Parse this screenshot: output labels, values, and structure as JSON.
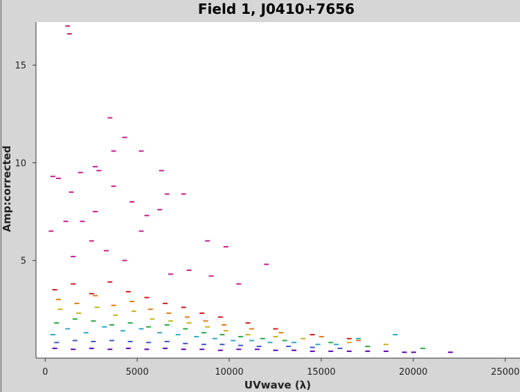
{
  "chart_data": {
    "type": "scatter",
    "title": "Field 1, J0410+7656",
    "xlabel": "UVwave (λ)",
    "ylabel": "Amp:corrected",
    "xlim": [
      -500,
      25800
    ],
    "ylim": [
      0,
      17.2
    ],
    "x_ticks": [
      0,
      5000,
      10000,
      15000,
      20000,
      25000
    ],
    "x_tick_labels": [
      "0",
      "5000",
      "10000",
      "15000",
      "20000",
      "25000"
    ],
    "y_ticks": [
      5,
      10,
      15
    ],
    "y_tick_labels": [
      "5",
      "10",
      "15"
    ],
    "grid": false,
    "background": "#ffffff",
    "series_colors": [
      "#5a00b5",
      "#3f53c9",
      "#2aa7c6",
      "#26a843",
      "#c7b21a",
      "#e07a12",
      "#d21818",
      "#c81c8c",
      "#8c1a8c",
      "#1a8c8c",
      "#6a6a6a"
    ],
    "series": [
      {
        "color": "#5a00b5",
        "points": [
          [
            500,
            0.5
          ],
          [
            1500,
            0.45
          ],
          [
            2500,
            0.5
          ],
          [
            3500,
            0.45
          ],
          [
            4500,
            0.5
          ],
          [
            5500,
            0.45
          ],
          [
            6500,
            0.5
          ],
          [
            7500,
            0.45
          ],
          [
            8500,
            0.45
          ],
          [
            9500,
            0.4
          ],
          [
            10500,
            0.45
          ],
          [
            11500,
            0.45
          ],
          [
            12500,
            0.4
          ],
          [
            13500,
            0.4
          ],
          [
            14500,
            0.35
          ],
          [
            15500,
            0.35
          ],
          [
            16500,
            0.35
          ],
          [
            17500,
            0.35
          ],
          [
            18500,
            0.35
          ],
          [
            19500,
            0.3
          ],
          [
            20000,
            0.3
          ],
          [
            22000,
            0.3
          ]
        ]
      },
      {
        "color": "#2aa7c6",
        "points": [
          [
            400,
            1.2
          ],
          [
            1200,
            1.5
          ],
          [
            2200,
            1.3
          ],
          [
            3200,
            1.6
          ],
          [
            4200,
            1.4
          ],
          [
            5200,
            1.5
          ],
          [
            6200,
            1.3
          ],
          [
            7200,
            1.2
          ],
          [
            8200,
            1.1
          ],
          [
            9200,
            1.0
          ],
          [
            10200,
            0.9
          ],
          [
            11200,
            0.9
          ],
          [
            12200,
            0.8
          ],
          [
            13500,
            0.8
          ],
          [
            14800,
            0.7
          ],
          [
            15800,
            0.7
          ],
          [
            17000,
            1.0
          ],
          [
            19000,
            1.2
          ]
        ]
      },
      {
        "color": "#26a843",
        "points": [
          [
            600,
            1.8
          ],
          [
            1600,
            2.0
          ],
          [
            2600,
            1.9
          ],
          [
            3600,
            1.7
          ],
          [
            4600,
            1.8
          ],
          [
            5600,
            1.6
          ],
          [
            6600,
            1.7
          ],
          [
            7600,
            1.5
          ],
          [
            8600,
            1.3
          ],
          [
            9600,
            1.2
          ],
          [
            10600,
            1.1
          ],
          [
            11800,
            1.0
          ],
          [
            13000,
            0.9
          ],
          [
            15500,
            0.8
          ],
          [
            17500,
            0.6
          ],
          [
            20500,
            0.5
          ]
        ]
      },
      {
        "color": "#c7b21a",
        "points": [
          [
            800,
            2.5
          ],
          [
            1800,
            2.3
          ],
          [
            2800,
            2.6
          ],
          [
            3800,
            2.2
          ],
          [
            4800,
            2.4
          ],
          [
            5800,
            2.0
          ],
          [
            6800,
            1.9
          ],
          [
            7800,
            1.8
          ],
          [
            8800,
            1.6
          ],
          [
            9800,
            1.4
          ],
          [
            11000,
            1.2
          ],
          [
            12500,
            1.1
          ],
          [
            14000,
            1.0
          ],
          [
            16500,
            0.8
          ],
          [
            18500,
            0.7
          ]
        ]
      },
      {
        "color": "#e07a12",
        "points": [
          [
            700,
            3.0
          ],
          [
            1700,
            2.8
          ],
          [
            2700,
            3.2
          ],
          [
            3700,
            2.7
          ],
          [
            4700,
            2.9
          ],
          [
            5700,
            2.5
          ],
          [
            6700,
            2.3
          ],
          [
            7700,
            2.1
          ],
          [
            8700,
            1.9
          ],
          [
            9700,
            1.7
          ],
          [
            11200,
            1.5
          ],
          [
            12800,
            1.3
          ],
          [
            15000,
            1.1
          ],
          [
            17000,
            0.9
          ]
        ]
      },
      {
        "color": "#d21818",
        "points": [
          [
            500,
            3.5
          ],
          [
            1500,
            3.8
          ],
          [
            2500,
            3.3
          ],
          [
            3500,
            3.9
          ],
          [
            4500,
            3.4
          ],
          [
            5500,
            3.1
          ],
          [
            6500,
            2.8
          ],
          [
            7500,
            2.6
          ],
          [
            8500,
            2.3
          ],
          [
            9500,
            2.1
          ],
          [
            11000,
            1.8
          ],
          [
            12500,
            1.5
          ],
          [
            14500,
            1.2
          ],
          [
            16500,
            1.0
          ]
        ]
      },
      {
        "color": "#c81c8c",
        "points": [
          [
            300,
            6.5
          ],
          [
            400,
            9.3
          ],
          [
            700,
            9.2
          ],
          [
            1200,
            17.0
          ],
          [
            1300,
            16.6
          ],
          [
            1900,
            9.5
          ],
          [
            1100,
            7.0
          ],
          [
            1400,
            8.5
          ],
          [
            2000,
            7.0
          ],
          [
            2700,
            9.8
          ],
          [
            2900,
            9.6
          ],
          [
            2700,
            7.5
          ],
          [
            3500,
            12.3
          ],
          [
            3700,
            10.6
          ],
          [
            3700,
            8.8
          ],
          [
            4300,
            11.3
          ],
          [
            4700,
            8.0
          ],
          [
            5200,
            10.6
          ],
          [
            5500,
            7.3
          ],
          [
            6300,
            9.6
          ],
          [
            6200,
            7.6
          ],
          [
            6600,
            8.4
          ],
          [
            7500,
            8.4
          ],
          [
            8800,
            6.0
          ],
          [
            9800,
            5.7
          ],
          [
            5200,
            6.5
          ],
          [
            4300,
            5.0
          ],
          [
            3300,
            5.5
          ],
          [
            2500,
            6.0
          ],
          [
            1500,
            5.2
          ],
          [
            6800,
            4.3
          ],
          [
            7800,
            4.5
          ],
          [
            9000,
            4.2
          ],
          [
            10500,
            3.8
          ],
          [
            12000,
            4.8
          ]
        ]
      },
      {
        "color": "#3f53c9",
        "points": [
          [
            600,
            0.8
          ],
          [
            1600,
            0.9
          ],
          [
            2600,
            0.85
          ],
          [
            3600,
            0.9
          ],
          [
            4600,
            0.85
          ],
          [
            5600,
            0.8
          ],
          [
            6600,
            0.85
          ],
          [
            7600,
            0.75
          ],
          [
            8600,
            0.7
          ],
          [
            9600,
            0.7
          ],
          [
            10600,
            0.65
          ],
          [
            11600,
            0.6
          ],
          [
            13200,
            0.6
          ],
          [
            14500,
            0.55
          ],
          [
            16000,
            0.5
          ]
        ]
      }
    ]
  }
}
